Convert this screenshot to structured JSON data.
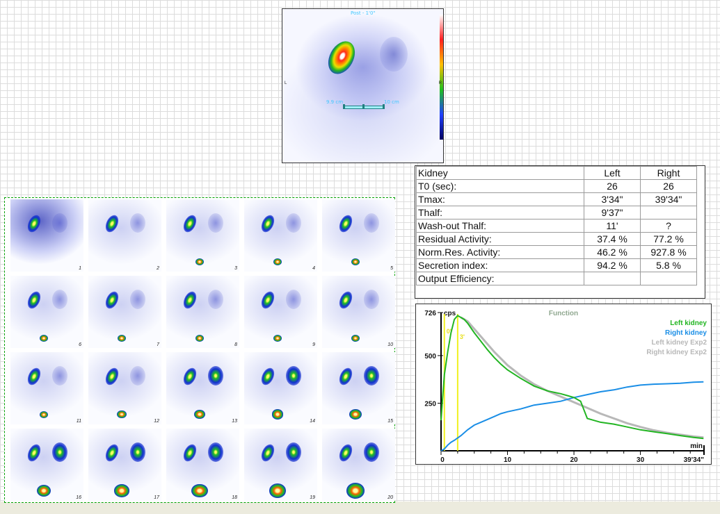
{
  "scan": {
    "top_label": "Post - 1'0\"",
    "left_marker": "L",
    "right_marker": "R",
    "ruler_left_label": "9.9 cm",
    "ruler_right_label": "10 cm"
  },
  "frames": [
    "1",
    "2",
    "3",
    "4",
    "5",
    "6",
    "7",
    "8",
    "9",
    "10",
    "11",
    "12",
    "13",
    "14",
    "15",
    "16",
    "17",
    "18",
    "19",
    "20"
  ],
  "results": {
    "header": [
      "Kidney",
      "Left",
      "Right"
    ],
    "rows": [
      [
        "T0 (sec):",
        "26",
        "26"
      ],
      [
        "Tmax:",
        "3'34\"",
        "39'34\""
      ],
      [
        "Thalf:",
        "9'37\"",
        ""
      ],
      [
        "Wash-out Thalf:",
        "11'",
        "?"
      ],
      [
        "Residual Activity:",
        "37.4 %",
        "77.2 %"
      ],
      [
        "Norm.Res. Activity:",
        "46.2 %",
        "927.8 %"
      ],
      [
        "Secretion index:",
        "94.2 %",
        "5.8 %"
      ],
      [
        "Output Efficiency:",
        "",
        ""
      ]
    ]
  },
  "chart_data": {
    "type": "line",
    "title": "Function",
    "xlabel": "min",
    "ylabel": "cps",
    "xlim": [
      0,
      39.57
    ],
    "ylim": [
      0,
      726
    ],
    "x_ticks": [
      "0",
      "10",
      "20",
      "30",
      "39'34\""
    ],
    "x_tick_values": [
      0,
      10,
      20,
      30,
      39.57
    ],
    "y_ticks": [
      "250",
      "500",
      "726"
    ],
    "y_tick_values": [
      250,
      500,
      726
    ],
    "markers": [
      {
        "x": 0.5,
        "label": "0'"
      },
      {
        "x": 2.5,
        "label": "3'"
      }
    ],
    "series": [
      {
        "name": "Left kidney",
        "color": "#22b522",
        "x": [
          0,
          0.2,
          0.5,
          1,
          1.5,
          2,
          2.5,
          3,
          3.5,
          4,
          5,
          6,
          7,
          8,
          9,
          10,
          12,
          14,
          16,
          18,
          19,
          20,
          21,
          22,
          24,
          26,
          28,
          30,
          32,
          34,
          36,
          38,
          39.5
        ],
        "y": [
          160,
          260,
          400,
          520,
          620,
          690,
          710,
          700,
          690,
          670,
          620,
          575,
          530,
          490,
          455,
          425,
          380,
          340,
          315,
          300,
          290,
          280,
          260,
          170,
          150,
          140,
          125,
          110,
          100,
          90,
          80,
          70,
          65
        ]
      },
      {
        "name": "Right kidney",
        "color": "#1a8ee6",
        "x": [
          0,
          0.5,
          1,
          1.5,
          2,
          3,
          4,
          5,
          6,
          7,
          8,
          9,
          10,
          12,
          14,
          16,
          18,
          20,
          22,
          24,
          26,
          28,
          30,
          32,
          34,
          36,
          38,
          39.5
        ],
        "y": [
          0,
          10,
          30,
          45,
          55,
          80,
          110,
          135,
          150,
          165,
          180,
          195,
          205,
          220,
          240,
          250,
          260,
          280,
          295,
          310,
          320,
          335,
          345,
          350,
          352,
          355,
          360,
          362
        ]
      },
      {
        "name": "Left kidney Exp2",
        "color": "#b8b8b8",
        "x": [
          3,
          4,
          6,
          8,
          10,
          12,
          14,
          16,
          18,
          20,
          22,
          24,
          26,
          28,
          30,
          32,
          34,
          36,
          38,
          39.5
        ],
        "y": [
          700,
          680,
          600,
          520,
          450,
          395,
          350,
          315,
          285,
          255,
          225,
          195,
          170,
          145,
          125,
          108,
          95,
          85,
          75,
          70
        ]
      },
      {
        "name": "Right kidney Exp2",
        "color": "#b8b8b8",
        "x": [],
        "y": []
      }
    ]
  }
}
